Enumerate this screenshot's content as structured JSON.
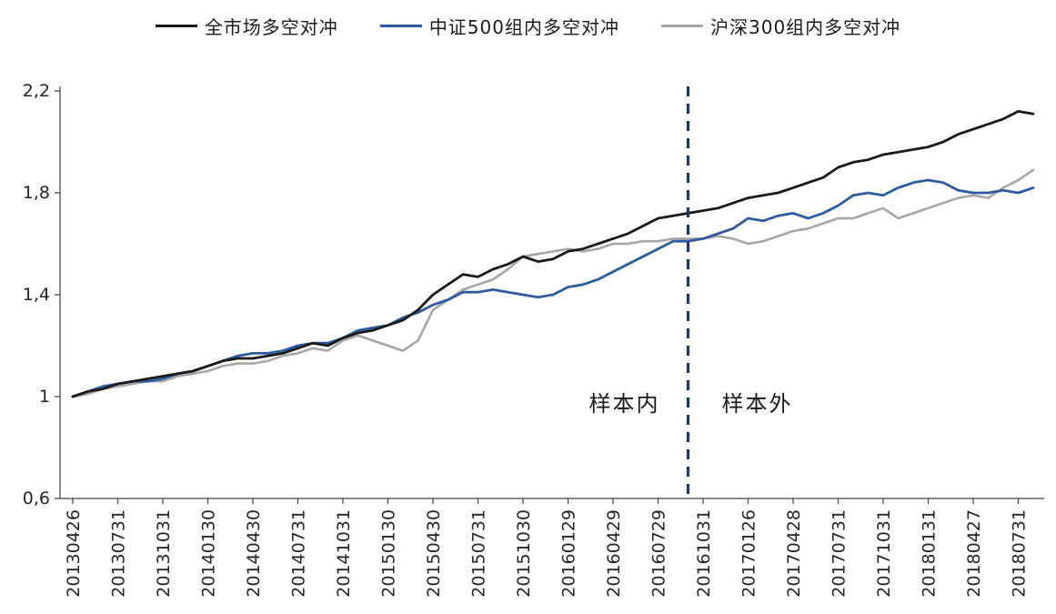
{
  "legend": [
    {
      "label": "全市场多空对冲",
      "color": "#1a1a1a"
    },
    {
      "label": "中证500组内多空对冲",
      "color": "#2e5b9f"
    },
    {
      "label": "沪深300组内多空对冲",
      "color": "#a6a6a6"
    }
  ],
  "annotations": {
    "in_sample": "样本内",
    "out_sample": "样本外"
  },
  "divider": {
    "date": "20160930",
    "color": "#1f3864"
  },
  "chart_data": {
    "type": "line",
    "title": "",
    "xlabel": "",
    "ylabel": "",
    "grid": false,
    "legend_position": "top",
    "ylim": [
      0.6,
      2.2
    ],
    "y_ticks": {
      "labels": [
        "2,2",
        "1,8",
        "1,4",
        "1",
        "0,6"
      ],
      "values": [
        2.2,
        1.8,
        1.4,
        1.0,
        0.6
      ]
    },
    "x_tick_labels": [
      "20130426",
      "20130731",
      "20131031",
      "20140130",
      "20140430",
      "20140731",
      "20141031",
      "20150130",
      "20150430",
      "20150731",
      "20151030",
      "20160129",
      "20160429",
      "20160729",
      "20161031",
      "20170126",
      "20170428",
      "20170731",
      "20171031",
      "20180131",
      "20180427",
      "20180731"
    ],
    "x_tick_indices": [
      0,
      3,
      6,
      9,
      12,
      15,
      18,
      21,
      24,
      27,
      30,
      33,
      36,
      39,
      42,
      45,
      48,
      51,
      54,
      57,
      60,
      63
    ],
    "x_months": [
      "2013-04",
      "2013-05",
      "2013-06",
      "2013-07",
      "2013-08",
      "2013-09",
      "2013-10",
      "2013-11",
      "2013-12",
      "2014-01",
      "2014-02",
      "2014-03",
      "2014-04",
      "2014-05",
      "2014-06",
      "2014-07",
      "2014-08",
      "2014-09",
      "2014-10",
      "2014-11",
      "2014-12",
      "2015-01",
      "2015-02",
      "2015-03",
      "2015-04",
      "2015-05",
      "2015-06",
      "2015-07",
      "2015-08",
      "2015-09",
      "2015-10",
      "2015-11",
      "2015-12",
      "2016-01",
      "2016-02",
      "2016-03",
      "2016-04",
      "2016-05",
      "2016-06",
      "2016-07",
      "2016-08",
      "2016-09",
      "2016-10",
      "2016-11",
      "2016-12",
      "2017-01",
      "2017-02",
      "2017-03",
      "2017-04",
      "2017-05",
      "2017-06",
      "2017-07",
      "2017-08",
      "2017-09",
      "2017-10",
      "2017-11",
      "2017-12",
      "2018-01",
      "2018-02",
      "2018-03",
      "2018-04",
      "2018-05",
      "2018-06",
      "2018-07",
      "2018-08"
    ],
    "divider_index": 41,
    "series": [
      {
        "name": "全市场多空对冲",
        "color": "#1a1a1a",
        "width": 2.8,
        "values": [
          1.0,
          1.02,
          1.03,
          1.05,
          1.06,
          1.07,
          1.08,
          1.09,
          1.1,
          1.12,
          1.14,
          1.15,
          1.15,
          1.16,
          1.17,
          1.19,
          1.21,
          1.2,
          1.23,
          1.25,
          1.26,
          1.28,
          1.3,
          1.34,
          1.4,
          1.44,
          1.48,
          1.47,
          1.5,
          1.52,
          1.55,
          1.53,
          1.54,
          1.57,
          1.58,
          1.6,
          1.62,
          1.64,
          1.67,
          1.7,
          1.71,
          1.72,
          1.73,
          1.74,
          1.76,
          1.78,
          1.79,
          1.8,
          1.82,
          1.84,
          1.86,
          1.9,
          1.92,
          1.93,
          1.95,
          1.96,
          1.97,
          1.98,
          2.0,
          2.03,
          2.05,
          2.07,
          2.09,
          2.12,
          2.11
        ]
      },
      {
        "name": "中证500组内多空对冲",
        "color": "#2e5b9f",
        "width": 2.8,
        "values": [
          1.0,
          1.02,
          1.04,
          1.05,
          1.06,
          1.06,
          1.07,
          1.09,
          1.1,
          1.12,
          1.14,
          1.16,
          1.17,
          1.17,
          1.18,
          1.2,
          1.21,
          1.21,
          1.23,
          1.26,
          1.27,
          1.28,
          1.31,
          1.33,
          1.36,
          1.38,
          1.41,
          1.41,
          1.42,
          1.41,
          1.4,
          1.39,
          1.4,
          1.43,
          1.44,
          1.46,
          1.49,
          1.52,
          1.55,
          1.58,
          1.61,
          1.61,
          1.62,
          1.64,
          1.66,
          1.7,
          1.69,
          1.71,
          1.72,
          1.7,
          1.72,
          1.75,
          1.79,
          1.8,
          1.79,
          1.82,
          1.84,
          1.85,
          1.84,
          1.81,
          1.8,
          1.8,
          1.81,
          1.8,
          1.82
        ]
      },
      {
        "name": "沪深300组内多空对冲",
        "color": "#a6a6a6",
        "width": 2.6,
        "values": [
          1.0,
          1.01,
          1.03,
          1.04,
          1.05,
          1.06,
          1.06,
          1.08,
          1.09,
          1.1,
          1.12,
          1.13,
          1.13,
          1.14,
          1.16,
          1.17,
          1.19,
          1.18,
          1.22,
          1.24,
          1.22,
          1.2,
          1.18,
          1.22,
          1.34,
          1.38,
          1.42,
          1.44,
          1.46,
          1.5,
          1.55,
          1.56,
          1.57,
          1.58,
          1.57,
          1.58,
          1.6,
          1.6,
          1.61,
          1.61,
          1.62,
          1.62,
          1.62,
          1.63,
          1.62,
          1.6,
          1.61,
          1.63,
          1.65,
          1.66,
          1.68,
          1.7,
          1.7,
          1.72,
          1.74,
          1.7,
          1.72,
          1.74,
          1.76,
          1.78,
          1.79,
          1.78,
          1.82,
          1.85,
          1.89
        ]
      }
    ]
  }
}
